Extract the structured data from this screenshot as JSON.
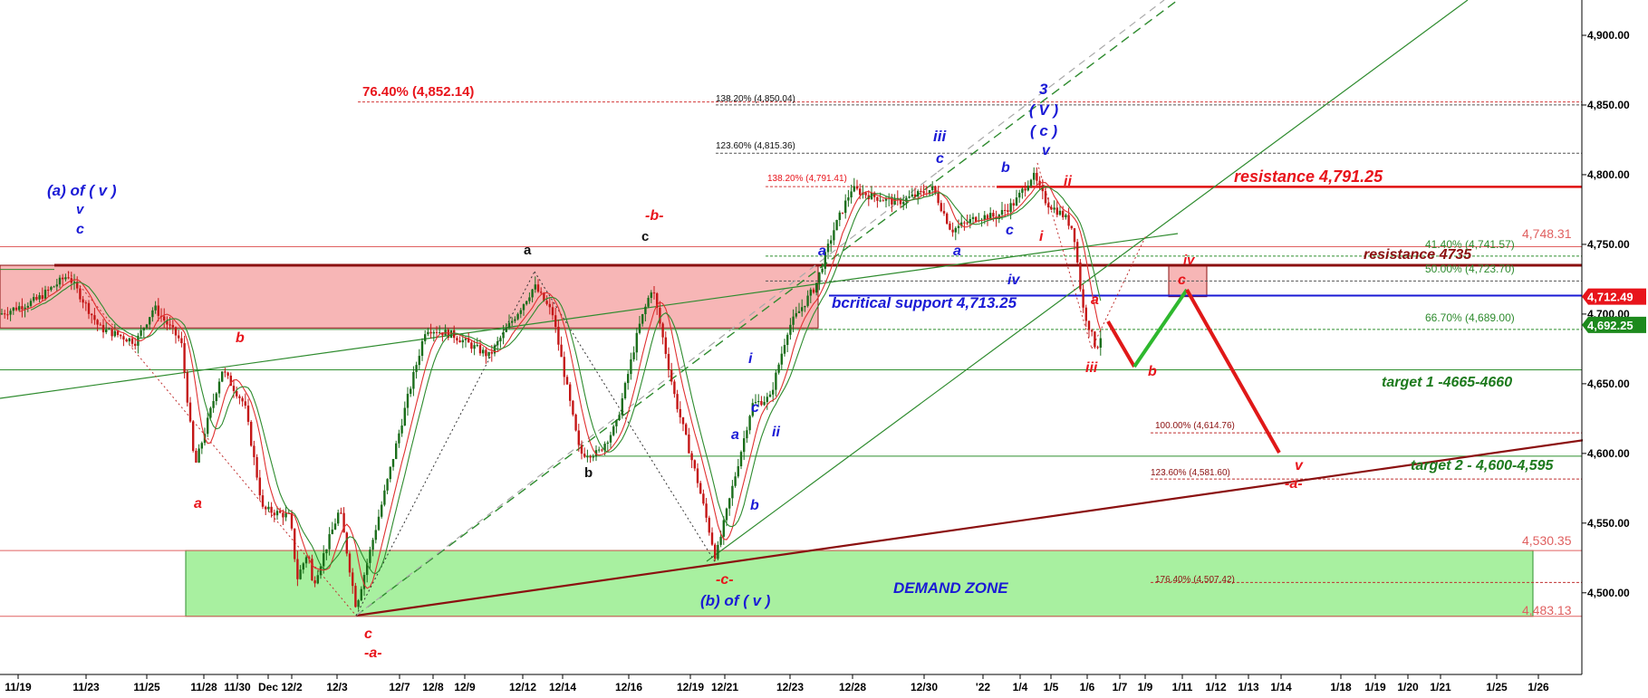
{
  "colors": {
    "red_label": "#e8141b",
    "blue_label": "#1a1ad6",
    "green_label": "#1d7a1d",
    "dark_red": "#8b1010",
    "demand_zone": "#a8f0a0",
    "resistance_zone": "#f7b6b6",
    "up_candle": "#1b6e1b",
    "down_candle": "#c41616"
  },
  "chart_data": {
    "type": "candlestick",
    "ylim": [
      4430,
      4930
    ],
    "y_ticks": [
      "4,900.00",
      "4,850.00",
      "4,800.00",
      "4,750.00",
      "4,700.00",
      "4,650.00",
      "4,600.00",
      "4,550.00",
      "4,500.00"
    ],
    "y_tick_values": [
      4900,
      4850,
      4800,
      4750,
      4700,
      4650,
      4600,
      4550,
      4500
    ],
    "x_ticks": [
      "11/19",
      "11/23",
      "11/25",
      "11/28",
      "11/30",
      "Dec",
      "12/2",
      "12/3",
      "12/7",
      "12/8",
      "12/9",
      "12/12",
      "12/14",
      "12/16",
      "12/19",
      "12/21",
      "12/23",
      "12/28",
      "12/30",
      "'22",
      "1/4",
      "1/5",
      "1/6",
      "1/7",
      "1/9",
      "1/11",
      "1/12",
      "1/13",
      "1/14",
      "1/18",
      "1/19",
      "1/20",
      "1/21",
      "1/25",
      "1/26"
    ],
    "price_tags": [
      {
        "text": "4,712.49",
        "value": 4712.49,
        "color": "#e8141b"
      },
      {
        "text": "4,692.25",
        "value": 4692.25,
        "color": "#1d8a1d"
      }
    ],
    "fib_levels": [
      {
        "text": "76.40% (4,852.14)",
        "value": 4852.14
      },
      {
        "text": "138.20% (4,850.04)",
        "value": 4850.04
      },
      {
        "text": "123.60% (4,815.36)",
        "value": 4815.36
      },
      {
        "text": "138.20% (4,791.41)",
        "value": 4791.41
      },
      {
        "text": "41.40% (4,741.57)",
        "value": 4741.57
      },
      {
        "text": "50.00% (4,723.70)",
        "value": 4723.7
      },
      {
        "text": "66.70% (4,689.00)",
        "value": 4689.0
      },
      {
        "text": "100.00% (4,614.76)",
        "value": 4614.76
      },
      {
        "text": "123.60% (4,581.60)",
        "value": 4581.6
      },
      {
        "text": "176.40% (4,507.42)",
        "value": 4507.42
      }
    ],
    "level_labels": [
      {
        "text": "4,748.31",
        "value": 4748.31
      },
      {
        "text": "4,530.35",
        "value": 4530.35
      },
      {
        "text": "4,483.13",
        "value": 4483.13
      }
    ],
    "annotations": {
      "resistance_1": "resistance 4,791.25",
      "resistance_2": "resistance 4735",
      "critical_support": "bcritical support 4,713.25",
      "target_1": "target 1 -4665-4660",
      "target_2": "target 2 - 4,600-4,595",
      "demand_zone": "DEMAND ZONE"
    },
    "wave_labels": [
      {
        "text": "(a) of ( v )",
        "color": "blue"
      },
      {
        "text": "v",
        "color": "blue"
      },
      {
        "text": "c",
        "color": "blue"
      },
      {
        "text": "a",
        "color": "red"
      },
      {
        "text": "b",
        "color": "red"
      },
      {
        "text": "c",
        "color": "red"
      },
      {
        "text": "-a-",
        "color": "red"
      },
      {
        "text": "a",
        "color": "black"
      },
      {
        "text": "b",
        "color": "black"
      },
      {
        "text": "c",
        "color": "black"
      },
      {
        "text": "-b-",
        "color": "red"
      },
      {
        "text": "-c-",
        "color": "red"
      },
      {
        "text": "(b) of ( v )",
        "color": "blue"
      },
      {
        "text": "a",
        "color": "blue"
      },
      {
        "text": "b",
        "color": "blue"
      },
      {
        "text": "i",
        "color": "blue"
      },
      {
        "text": "c",
        "color": "blue"
      },
      {
        "text": "ii",
        "color": "blue"
      },
      {
        "text": "a",
        "color": "blue"
      },
      {
        "text": "iii",
        "color": "blue"
      },
      {
        "text": "c",
        "color": "blue"
      },
      {
        "text": "a",
        "color": "blue"
      },
      {
        "text": "b",
        "color": "blue"
      },
      {
        "text": "c",
        "color": "blue"
      },
      {
        "text": "iv",
        "color": "blue"
      },
      {
        "text": "3",
        "color": "blue"
      },
      {
        "text": "( V )",
        "color": "blue"
      },
      {
        "text": "( c )",
        "color": "blue"
      },
      {
        "text": "v",
        "color": "blue"
      },
      {
        "text": "i",
        "color": "red"
      },
      {
        "text": "ii",
        "color": "red"
      },
      {
        "text": "iii",
        "color": "red"
      },
      {
        "text": "a",
        "color": "red"
      },
      {
        "text": "b",
        "color": "red"
      },
      {
        "text": "iv",
        "color": "red"
      },
      {
        "text": "c",
        "color": "red"
      },
      {
        "text": "v",
        "color": "red"
      },
      {
        "text": "-a-",
        "color": "red"
      }
    ]
  }
}
